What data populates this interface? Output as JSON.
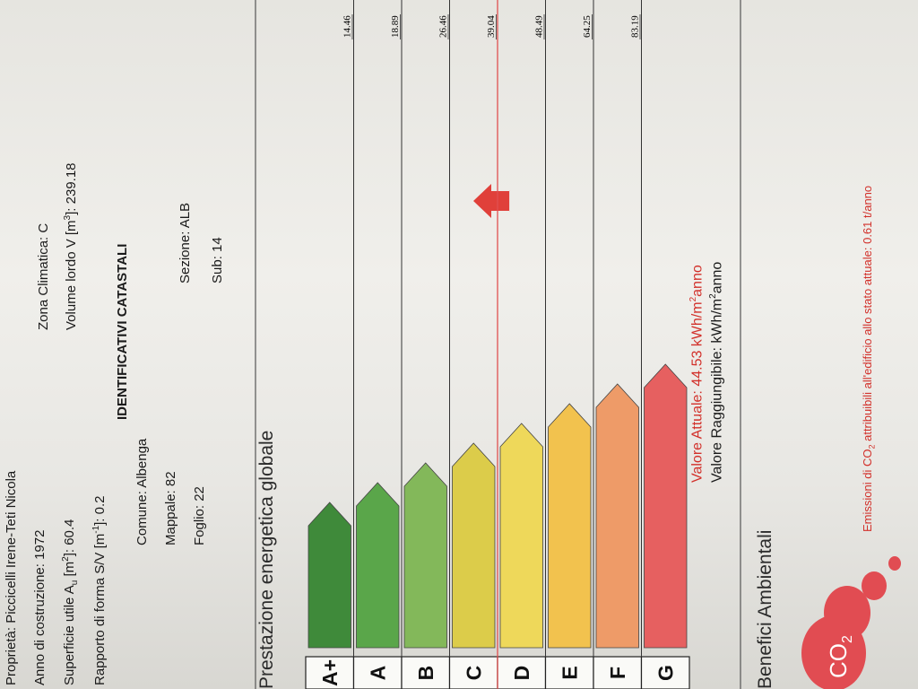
{
  "header": {
    "owner": "Proprietà: Piccicelli Irene-Teti Nicola",
    "year_built": "Anno di costruzione: 1972",
    "useful_area_prefix": "Superficie utile A",
    "useful_area_sub": "u",
    "useful_area_mid": " [m",
    "useful_area_sup": "2",
    "useful_area_value": "]: 60.4",
    "shape_ratio_prefix": "Rapporto di forma S/V [m",
    "shape_ratio_sup": "-1",
    "shape_ratio_value": "]: 0.2",
    "climatic_zone": "Zona Climatica: C",
    "gross_volume_prefix": "Volume lordo V [m",
    "gross_volume_sup": "3",
    "gross_volume_value": "]: 239.18"
  },
  "cadastral": {
    "title": "IDENTIFICATIVI CATASTALI",
    "comune": "Comune: Albenga",
    "mappale": "Mappale: 82",
    "foglio": "Foglio: 22",
    "sezione": "Sezione: ALB",
    "sub": "Sub: 14"
  },
  "energy": {
    "section_title": "Prestazione energetica globale",
    "classes": [
      "A+",
      "A",
      "B",
      "C",
      "D",
      "E",
      "F",
      "G"
    ],
    "thresholds": [
      "14.46",
      "18.89",
      "26.46",
      "39.04",
      "48.49",
      "64.25",
      "83.19"
    ],
    "class_colors": [
      "#3f8a3a",
      "#5aa64a",
      "#83b85a",
      "#dccc4a",
      "#eed85a",
      "#f2c24e",
      "#ee9b68",
      "#e66060"
    ],
    "current_class": "D",
    "current_value_line": "Valore Attuale: 44.53 kWh/m",
    "current_value_sup": "2",
    "current_value_unit": "anno",
    "achievable_value_line": "Valore Raggiungibile: kWh/m",
    "achievable_value_sup": "2",
    "achievable_value_unit": "anno",
    "current_value_color": "#d2302a"
  },
  "environment": {
    "section_title": "Benefici Ambientali",
    "co2_badge": "CO",
    "co2_badge_sub": "2",
    "emissions_prefix": "Emissioni di CO",
    "emissions_sub": "2",
    "emissions_text": " attribuibili all'edificio allo stato attuale: 0.61 t/anno"
  }
}
